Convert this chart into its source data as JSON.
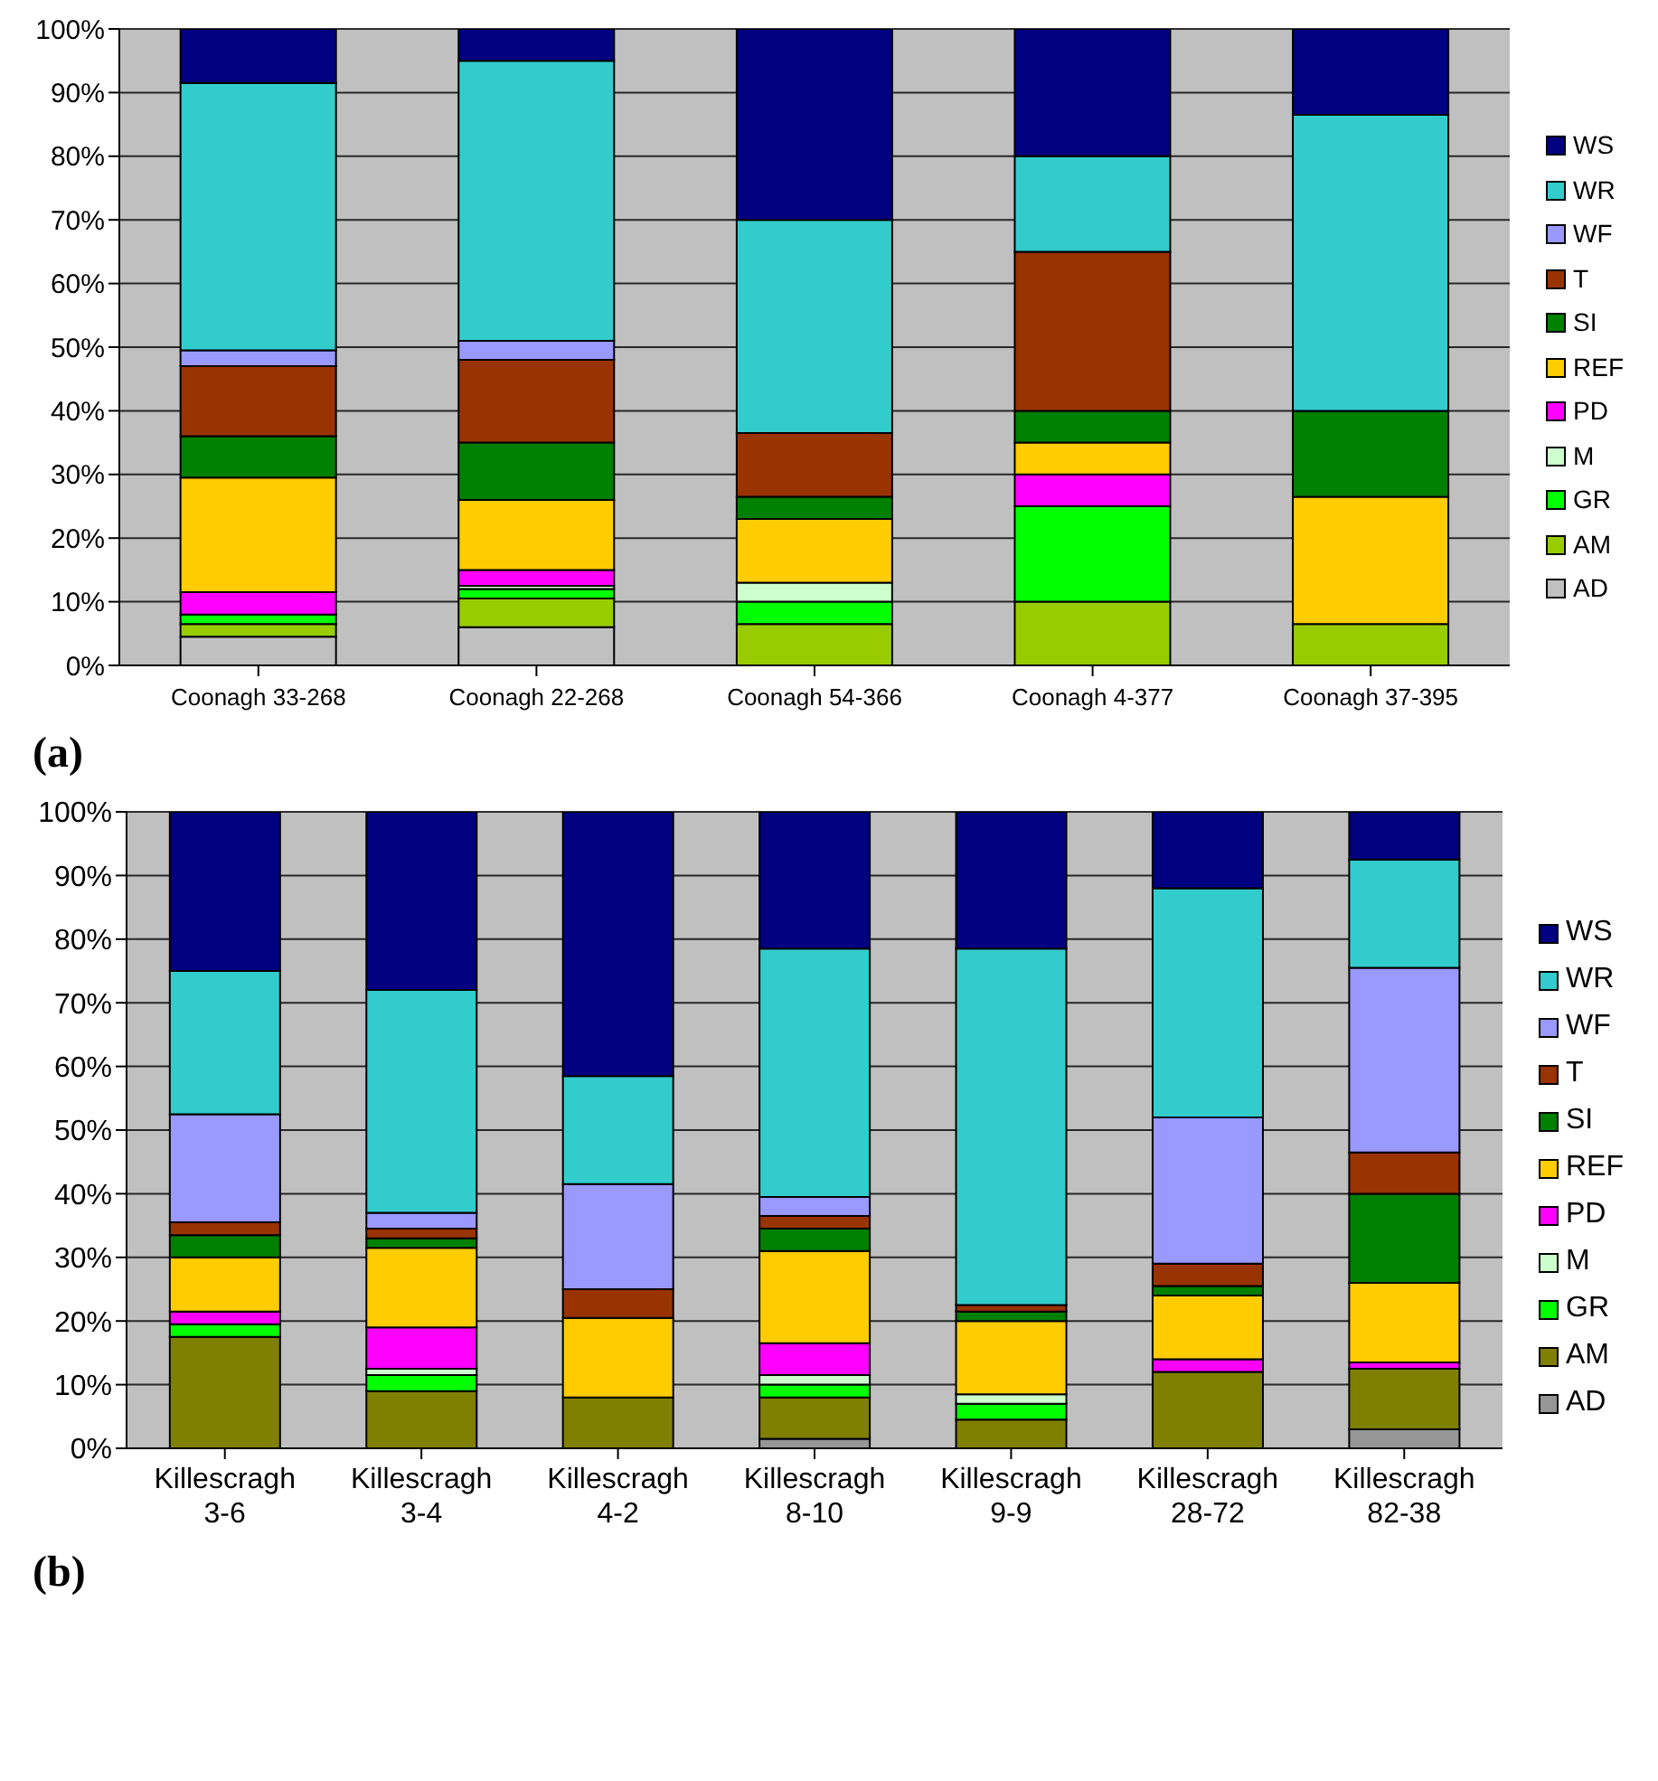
{
  "chart_data": [
    {
      "type": "bar",
      "stacked": true,
      "categories": [
        "Coonagh 33-268",
        "Coonagh 22-268",
        "Coonagh 54-366",
        "Coonagh 4-377",
        "Coonagh 37-395"
      ],
      "ylim": [
        0,
        100
      ],
      "yticks": [
        {
          "value": 0,
          "label": "0%"
        },
        {
          "value": 10,
          "label": "10%"
        },
        {
          "value": 20,
          "label": "20%"
        },
        {
          "value": 30,
          "label": "30%"
        },
        {
          "value": 40,
          "label": "40%"
        },
        {
          "value": 50,
          "label": "50%"
        },
        {
          "value": 60,
          "label": "60%"
        },
        {
          "value": 70,
          "label": "70%"
        },
        {
          "value": 80,
          "label": "80%"
        },
        {
          "value": 90,
          "label": "90%"
        },
        {
          "value": 100,
          "label": "100%"
        }
      ],
      "grid": "y",
      "legend": "right",
      "annotations": [
        "(a)"
      ],
      "series": [
        {
          "name": "AD",
          "color": "#c0c0c0",
          "values": [
            4.5,
            6,
            null,
            null,
            null
          ]
        },
        {
          "name": "AM",
          "color": "#99cc00",
          "values": [
            2,
            4.5,
            6.5,
            10,
            6.5
          ]
        },
        {
          "name": "GR",
          "color": "#00ff00",
          "values": [
            1.5,
            1.5,
            3.5,
            15,
            null
          ]
        },
        {
          "name": "M",
          "color": "#ccffcc",
          "values": [
            null,
            0.5,
            3,
            null,
            null
          ]
        },
        {
          "name": "PD",
          "color": "#ff00ff",
          "values": [
            3.5,
            2.5,
            null,
            5,
            null
          ]
        },
        {
          "name": "REF",
          "color": "#ffcc00",
          "values": [
            18,
            11,
            10,
            5,
            20
          ]
        },
        {
          "name": "SI",
          "color": "#008000",
          "values": [
            6.5,
            9,
            3.5,
            5,
            13.5
          ]
        },
        {
          "name": "T",
          "color": "#993300",
          "values": [
            11,
            13,
            10,
            25,
            null
          ]
        },
        {
          "name": "WF",
          "color": "#9999ff",
          "values": [
            2.5,
            3,
            null,
            null,
            null
          ]
        },
        {
          "name": "WR",
          "color": "#33cccc",
          "values": [
            42,
            44,
            33.5,
            15,
            46.5
          ]
        },
        {
          "name": "WS",
          "color": "#000080",
          "values": [
            8.5,
            5,
            30,
            20,
            13.5
          ]
        }
      ]
    },
    {
      "type": "bar",
      "stacked": true,
      "categories": [
        "Killescragh 3-6",
        "Killescragh 3-4",
        "Killescragh 4-2",
        "Killescragh 8-10",
        "Killescragh 9-9",
        "Killescragh 28-72",
        "Killescragh 82-38"
      ],
      "ylim": [
        0,
        100
      ],
      "yticks": [
        {
          "value": 0,
          "label": "0%"
        },
        {
          "value": 10,
          "label": "10%"
        },
        {
          "value": 20,
          "label": "20%"
        },
        {
          "value": 30,
          "label": "30%"
        },
        {
          "value": 40,
          "label": "40%"
        },
        {
          "value": 50,
          "label": "50%"
        },
        {
          "value": 60,
          "label": "60%"
        },
        {
          "value": 70,
          "label": "70%"
        },
        {
          "value": 80,
          "label": "80%"
        },
        {
          "value": 90,
          "label": "90%"
        },
        {
          "value": 100,
          "label": "100%"
        }
      ],
      "grid": "y",
      "legend": "right",
      "annotations": [
        "(b)"
      ],
      "series": [
        {
          "name": "AD",
          "color": "#969696",
          "values": [
            null,
            null,
            null,
            1.5,
            null,
            null,
            3
          ]
        },
        {
          "name": "AM",
          "color": "#808000",
          "values": [
            17.5,
            9,
            8,
            6.5,
            4.5,
            12,
            9.5
          ]
        },
        {
          "name": "GR",
          "color": "#00ff00",
          "values": [
            2,
            2.5,
            null,
            2,
            2.5,
            null,
            null
          ]
        },
        {
          "name": "M",
          "color": "#ccffcc",
          "values": [
            null,
            1,
            null,
            1.5,
            1.5,
            null,
            null
          ]
        },
        {
          "name": "PD",
          "color": "#ff00ff",
          "values": [
            2,
            6.5,
            null,
            5,
            null,
            2,
            1
          ]
        },
        {
          "name": "REF",
          "color": "#ffcc00",
          "values": [
            8.5,
            12.5,
            12.5,
            14.5,
            11.5,
            10,
            12.5
          ]
        },
        {
          "name": "SI",
          "color": "#008000",
          "values": [
            3.5,
            1.5,
            null,
            3.5,
            1.5,
            1.5,
            14
          ]
        },
        {
          "name": "T",
          "color": "#993300",
          "values": [
            2,
            1.5,
            4.5,
            2,
            1,
            3.5,
            6.5
          ]
        },
        {
          "name": "WF",
          "color": "#9999ff",
          "values": [
            17,
            2.5,
            16.5,
            3,
            null,
            23,
            29
          ]
        },
        {
          "name": "WR",
          "color": "#33cccc",
          "values": [
            22.5,
            35,
            17,
            39,
            56,
            36,
            17
          ]
        },
        {
          "name": "WS",
          "color": "#000080",
          "values": [
            25,
            28,
            41.5,
            21.5,
            21.5,
            12,
            7.5
          ]
        }
      ]
    }
  ]
}
